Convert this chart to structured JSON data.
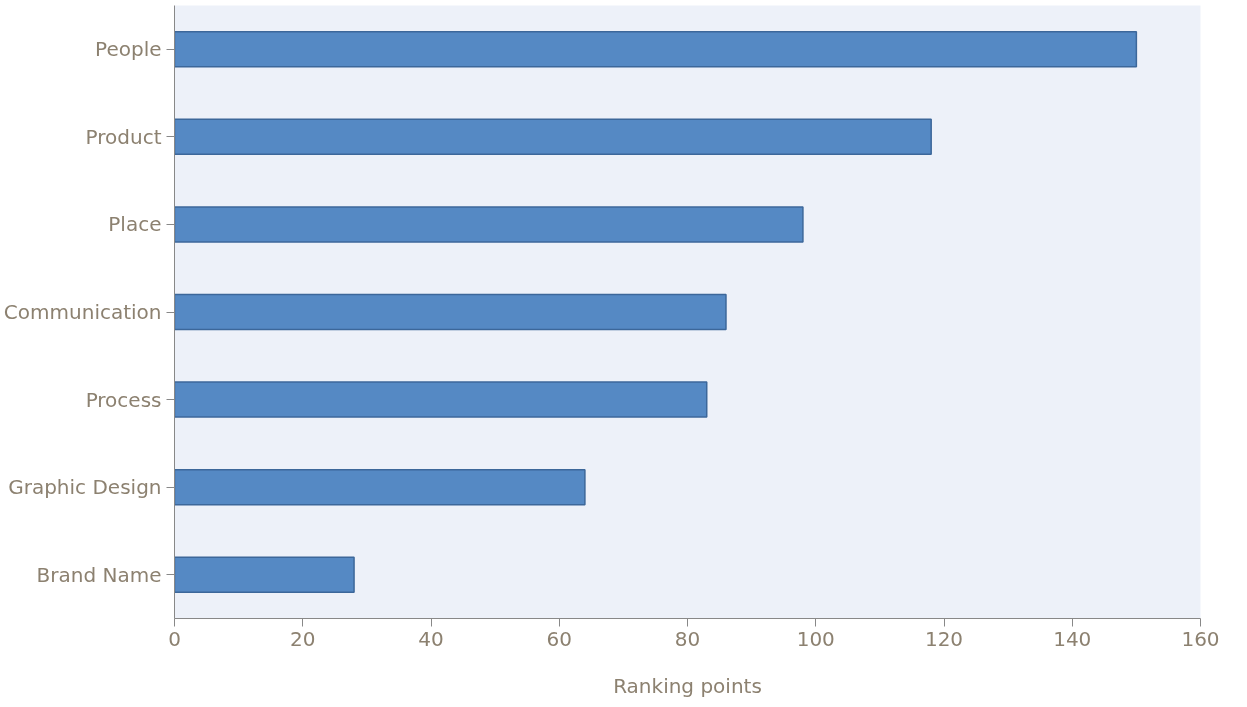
{
  "chart_data": {
    "type": "bar",
    "orientation": "horizontal",
    "xlabel": "Ranking points",
    "categories": [
      "People",
      "Product",
      "Place",
      "Communication",
      "Process",
      "Graphic Design",
      "Brand Name"
    ],
    "values": [
      150,
      118,
      98,
      86,
      83,
      64,
      28
    ],
    "color": "#5589c4",
    "xlim": [
      0,
      160
    ],
    "xticks": [
      0,
      20,
      40,
      60,
      80,
      100,
      120,
      140,
      160
    ],
    "grid": false
  }
}
